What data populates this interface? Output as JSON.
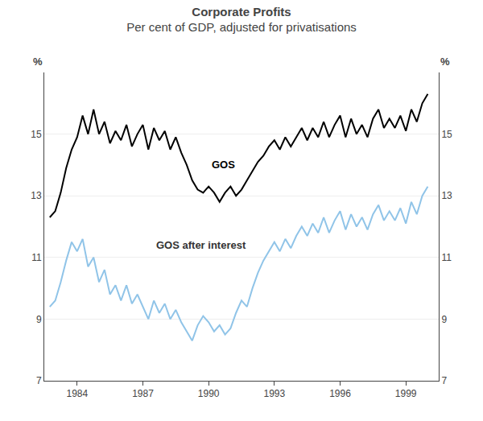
{
  "chart_data": {
    "type": "line",
    "title": "Corporate Profits",
    "subtitle": "Per cent of GDP, adjusted for privatisations",
    "ylabel": "%",
    "y2label": "%",
    "x": [
      1982.75,
      1983.0,
      1983.25,
      1983.5,
      1983.75,
      1984.0,
      1984.25,
      1984.5,
      1984.75,
      1985.0,
      1985.25,
      1985.5,
      1985.75,
      1986.0,
      1986.25,
      1986.5,
      1986.75,
      1987.0,
      1987.25,
      1987.5,
      1987.75,
      1988.0,
      1988.25,
      1988.5,
      1988.75,
      1989.0,
      1989.25,
      1989.5,
      1989.75,
      1990.0,
      1990.25,
      1990.5,
      1990.75,
      1991.0,
      1991.25,
      1991.5,
      1991.75,
      1992.0,
      1992.25,
      1992.5,
      1992.75,
      1993.0,
      1993.25,
      1993.5,
      1993.75,
      1994.0,
      1994.25,
      1994.5,
      1994.75,
      1995.0,
      1995.25,
      1995.5,
      1995.75,
      1996.0,
      1996.25,
      1996.5,
      1996.75,
      1997.0,
      1997.25,
      1997.5,
      1997.75,
      1998.0,
      1998.25,
      1998.5,
      1998.75,
      1999.0,
      1999.25,
      1999.5,
      1999.75,
      2000.0
    ],
    "series": [
      {
        "name": "GOS",
        "color": "#000000",
        "values": [
          12.3,
          12.5,
          13.1,
          13.9,
          14.5,
          14.9,
          15.6,
          15.0,
          15.8,
          15.0,
          15.4,
          14.7,
          15.1,
          14.8,
          15.3,
          14.6,
          15.0,
          15.3,
          14.5,
          15.2,
          14.8,
          15.1,
          14.5,
          14.9,
          14.4,
          14.0,
          13.5,
          13.2,
          13.1,
          13.3,
          13.1,
          12.8,
          13.1,
          13.3,
          13.0,
          13.2,
          13.5,
          13.8,
          14.1,
          14.3,
          14.6,
          14.8,
          14.5,
          14.9,
          14.6,
          14.9,
          15.2,
          14.8,
          15.2,
          14.9,
          15.4,
          14.9,
          15.3,
          15.6,
          14.9,
          15.5,
          15.0,
          15.3,
          14.9,
          15.5,
          15.8,
          15.2,
          15.5,
          15.2,
          15.6,
          15.1,
          15.8,
          15.4,
          16.0,
          16.3
        ]
      },
      {
        "name": "GOS after interest",
        "color": "#90c4e8",
        "values": [
          9.4,
          9.6,
          10.2,
          10.9,
          11.5,
          11.2,
          11.6,
          10.7,
          11.0,
          10.2,
          10.6,
          9.8,
          10.1,
          9.6,
          10.1,
          9.5,
          9.8,
          9.4,
          9.0,
          9.6,
          9.2,
          9.5,
          9.0,
          9.3,
          8.9,
          8.6,
          8.3,
          8.8,
          9.1,
          8.9,
          8.6,
          8.8,
          8.5,
          8.7,
          9.2,
          9.6,
          9.4,
          10.0,
          10.5,
          10.9,
          11.2,
          11.5,
          11.2,
          11.6,
          11.3,
          11.7,
          12.0,
          11.7,
          12.1,
          11.8,
          12.3,
          11.8,
          12.2,
          12.5,
          11.9,
          12.4,
          12.0,
          12.3,
          11.9,
          12.4,
          12.7,
          12.2,
          12.5,
          12.2,
          12.6,
          12.1,
          12.8,
          12.4,
          13.0,
          13.3
        ]
      }
    ],
    "xlim": [
      1982.5,
      2000.5
    ],
    "xticks": [
      1984,
      1987,
      1990,
      1993,
      1996,
      1999
    ],
    "ylim": [
      7,
      17
    ],
    "yticks": [
      7,
      9,
      11,
      13,
      15
    ],
    "y2lim": [
      7,
      17
    ],
    "y2ticks": [
      7,
      9,
      11,
      13,
      15
    ],
    "grid": true
  }
}
